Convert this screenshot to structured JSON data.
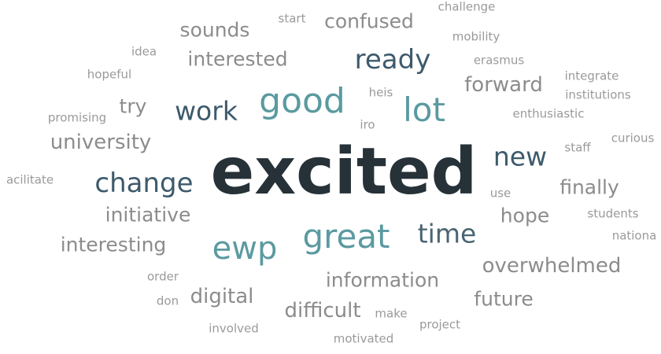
{
  "colors": {
    "darkest": "#263238",
    "dark_teal": "#3d5a6c",
    "slate": "#4a6572",
    "teal": "#5a9aa0",
    "gray": "#8c8c8c",
    "light_gray": "#9a9a9a"
  },
  "words": [
    {
      "text": "excited",
      "color": "#263238",
      "weight": 1.0
    },
    {
      "text": "good",
      "color": "#5a9aa0",
      "weight": 0.5
    },
    {
      "text": "lot",
      "color": "#5a9aa0",
      "weight": 0.47
    },
    {
      "text": "great",
      "color": "#5a9aa0",
      "weight": 0.47
    },
    {
      "text": "ewp",
      "color": "#5a9aa0",
      "weight": 0.44
    },
    {
      "text": "ready",
      "color": "#3d5a6c",
      "weight": 0.38
    },
    {
      "text": "work",
      "color": "#3d5a6c",
      "weight": 0.37
    },
    {
      "text": "change",
      "color": "#3d5a6c",
      "weight": 0.38
    },
    {
      "text": "new",
      "color": "#3d5a6c",
      "weight": 0.37
    },
    {
      "text": "time",
      "color": "#4a6572",
      "weight": 0.37
    },
    {
      "text": "university",
      "color": "#8c8c8c",
      "weight": 0.29
    },
    {
      "text": "interested",
      "color": "#8c8c8c",
      "weight": 0.28
    },
    {
      "text": "sounds",
      "color": "#8c8c8c",
      "weight": 0.28
    },
    {
      "text": "confused",
      "color": "#8c8c8c",
      "weight": 0.28
    },
    {
      "text": "forward",
      "color": "#8c8c8c",
      "weight": 0.28
    },
    {
      "text": "try",
      "color": "#8c8c8c",
      "weight": 0.28
    },
    {
      "text": "finally",
      "color": "#8c8c8c",
      "weight": 0.28
    },
    {
      "text": "initiative",
      "color": "#8c8c8c",
      "weight": 0.28
    },
    {
      "text": "hope",
      "color": "#8c8c8c",
      "weight": 0.28
    },
    {
      "text": "interesting",
      "color": "#8c8c8c",
      "weight": 0.28
    },
    {
      "text": "overwhelmed",
      "color": "#8c8c8c",
      "weight": 0.28
    },
    {
      "text": "information",
      "color": "#8c8c8c",
      "weight": 0.27
    },
    {
      "text": "digital",
      "color": "#8c8c8c",
      "weight": 0.28
    },
    {
      "text": "future",
      "color": "#8c8c8c",
      "weight": 0.27
    },
    {
      "text": "difficult",
      "color": "#8c8c8c",
      "weight": 0.28
    },
    {
      "text": "challenge",
      "color": "#9a9a9a",
      "weight": 0.16
    },
    {
      "text": "start",
      "color": "#9a9a9a",
      "weight": 0.16
    },
    {
      "text": "mobility",
      "color": "#9a9a9a",
      "weight": 0.16
    },
    {
      "text": "idea",
      "color": "#9a9a9a",
      "weight": 0.16
    },
    {
      "text": "erasmus",
      "color": "#9a9a9a",
      "weight": 0.16
    },
    {
      "text": "hopeful",
      "color": "#9a9a9a",
      "weight": 0.16
    },
    {
      "text": "integrate",
      "color": "#9a9a9a",
      "weight": 0.16
    },
    {
      "text": "heis",
      "color": "#9a9a9a",
      "weight": 0.16
    },
    {
      "text": "institutions",
      "color": "#9a9a9a",
      "weight": 0.16
    },
    {
      "text": "promising",
      "color": "#9a9a9a",
      "weight": 0.16
    },
    {
      "text": "enthusiastic",
      "color": "#9a9a9a",
      "weight": 0.16
    },
    {
      "text": "iro",
      "color": "#9a9a9a",
      "weight": 0.16
    },
    {
      "text": "curious",
      "color": "#9a9a9a",
      "weight": 0.16
    },
    {
      "text": "staff",
      "color": "#9a9a9a",
      "weight": 0.16
    },
    {
      "text": "acilitate",
      "color": "#9a9a9a",
      "weight": 0.16
    },
    {
      "text": "use",
      "color": "#9a9a9a",
      "weight": 0.16
    },
    {
      "text": "students",
      "color": "#9a9a9a",
      "weight": 0.16
    },
    {
      "text": "nationa",
      "color": "#9a9a9a",
      "weight": 0.16
    },
    {
      "text": "order",
      "color": "#9a9a9a",
      "weight": 0.16
    },
    {
      "text": "don",
      "color": "#9a9a9a",
      "weight": 0.16
    },
    {
      "text": "make",
      "color": "#9a9a9a",
      "weight": 0.16
    },
    {
      "text": "project",
      "color": "#9a9a9a",
      "weight": 0.16
    },
    {
      "text": "involved",
      "color": "#9a9a9a",
      "weight": 0.16
    },
    {
      "text": "motivated",
      "color": "#9a9a9a",
      "weight": 0.16
    }
  ]
}
